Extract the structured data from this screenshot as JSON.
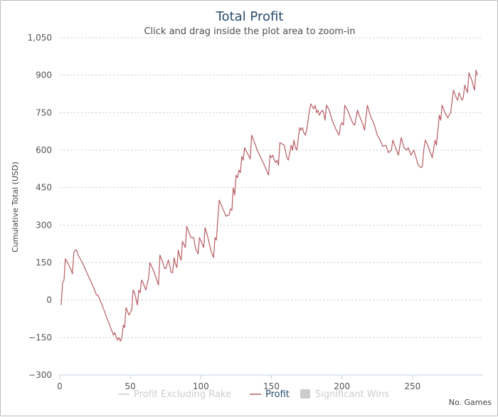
{
  "chart_data": {
    "type": "line",
    "title": "Total Profit",
    "subtitle": "Click and drag inside the plot area to zoom-in",
    "xlabel": "No. Games",
    "ylabel": "Cumulative Total (USD)",
    "xlim": [
      0,
      300
    ],
    "ylim": [
      -300,
      1050
    ],
    "xticks": [
      0,
      50,
      100,
      150,
      200,
      250
    ],
    "yticks": [
      -300,
      -150,
      0,
      150,
      300,
      450,
      600,
      750,
      900,
      1050
    ],
    "ytick_labels": [
      "−300",
      "−150",
      "0",
      "150",
      "300",
      "450",
      "600",
      "750",
      "900",
      "1,050"
    ],
    "grid": "horizontal dotted",
    "legend": {
      "placement": "bottom",
      "items": [
        {
          "label": "Profit Excluding Rake",
          "color": "#cccccc",
          "symbol": "line",
          "hidden": true
        },
        {
          "label": "Profit",
          "color": "#b85c63",
          "symbol": "line",
          "hidden": false
        },
        {
          "label": "Significant Wins",
          "color": "#cccccc",
          "symbol": "box",
          "hidden": true
        }
      ]
    },
    "series": [
      {
        "name": "Profit",
        "color": "#b85c63",
        "points": [
          [
            1,
            -20
          ],
          [
            2,
            70
          ],
          [
            3,
            80
          ],
          [
            4,
            165
          ],
          [
            6,
            145
          ],
          [
            8,
            120
          ],
          [
            9,
            105
          ],
          [
            10,
            190
          ],
          [
            11,
            200
          ],
          [
            12,
            200
          ],
          [
            13,
            180
          ],
          [
            16,
            150
          ],
          [
            20,
            100
          ],
          [
            24,
            50
          ],
          [
            26,
            20
          ],
          [
            27,
            20
          ],
          [
            30,
            -20
          ],
          [
            34,
            -80
          ],
          [
            36,
            -110
          ],
          [
            38,
            -140
          ],
          [
            39,
            -130
          ],
          [
            40,
            -150
          ],
          [
            41,
            -160
          ],
          [
            42,
            -150
          ],
          [
            43,
            -165
          ],
          [
            44,
            -150
          ],
          [
            45,
            -100
          ],
          [
            46,
            -110
          ],
          [
            47,
            -30
          ],
          [
            49,
            -60
          ],
          [
            51,
            -40
          ],
          [
            52,
            40
          ],
          [
            53,
            30
          ],
          [
            55,
            -20
          ],
          [
            56,
            40
          ],
          [
            57,
            30
          ],
          [
            58,
            80
          ],
          [
            59,
            70
          ],
          [
            61,
            40
          ],
          [
            63,
            90
          ],
          [
            64,
            150
          ],
          [
            67,
            110
          ],
          [
            70,
            60
          ],
          [
            71,
            180
          ],
          [
            73,
            150
          ],
          [
            74,
            130
          ],
          [
            75,
            125
          ],
          [
            77,
            160
          ],
          [
            79,
            110
          ],
          [
            80,
            110
          ],
          [
            81,
            170
          ],
          [
            82,
            145
          ],
          [
            83,
            130
          ],
          [
            84,
            200
          ],
          [
            85,
            175
          ],
          [
            86,
            160
          ],
          [
            87,
            235
          ],
          [
            89,
            210
          ],
          [
            90,
            295
          ],
          [
            91,
            280
          ],
          [
            93,
            250
          ],
          [
            95,
            250
          ],
          [
            96,
            210
          ],
          [
            98,
            185
          ],
          [
            99,
            250
          ],
          [
            102,
            210
          ],
          [
            103,
            290
          ],
          [
            105,
            250
          ],
          [
            107,
            200
          ],
          [
            109,
            170
          ],
          [
            110,
            250
          ],
          [
            111,
            240
          ],
          [
            113,
            400
          ],
          [
            116,
            360
          ],
          [
            118,
            335
          ],
          [
            119,
            340
          ],
          [
            120,
            340
          ],
          [
            121,
            365
          ],
          [
            122,
            360
          ],
          [
            123,
            450
          ],
          [
            124,
            420
          ],
          [
            125,
            500
          ],
          [
            126,
            490
          ],
          [
            127,
            520
          ],
          [
            128,
            510
          ],
          [
            129,
            575
          ],
          [
            130,
            560
          ],
          [
            131,
            610
          ],
          [
            135,
            565
          ],
          [
            136,
            660
          ],
          [
            140,
            600
          ],
          [
            145,
            540
          ],
          [
            148,
            500
          ],
          [
            149,
            580
          ],
          [
            150,
            570
          ],
          [
            151,
            580
          ],
          [
            152,
            560
          ],
          [
            153,
            550
          ],
          [
            154,
            560
          ],
          [
            155,
            540
          ],
          [
            156,
            630
          ],
          [
            159,
            620
          ],
          [
            161,
            570
          ],
          [
            162,
            560
          ],
          [
            164,
            620
          ],
          [
            165,
            600
          ],
          [
            166,
            640
          ],
          [
            167,
            610
          ],
          [
            168,
            600
          ],
          [
            170,
            690
          ],
          [
            171,
            680
          ],
          [
            172,
            690
          ],
          [
            173,
            670
          ],
          [
            174,
            660
          ],
          [
            175,
            680
          ],
          [
            177,
            760
          ],
          [
            178,
            785
          ],
          [
            180,
            765
          ],
          [
            181,
            780
          ],
          [
            182,
            750
          ],
          [
            183,
            760
          ],
          [
            184,
            740
          ],
          [
            186,
            760
          ],
          [
            187,
            750
          ],
          [
            188,
            720
          ],
          [
            189,
            780
          ],
          [
            191,
            760
          ],
          [
            193,
            720
          ],
          [
            196,
            680
          ],
          [
            198,
            660
          ],
          [
            199,
            700
          ],
          [
            200,
            710
          ],
          [
            201,
            700
          ],
          [
            202,
            780
          ],
          [
            204,
            760
          ],
          [
            206,
            730
          ],
          [
            208,
            705
          ],
          [
            209,
            700
          ],
          [
            211,
            760
          ],
          [
            212,
            740
          ],
          [
            213,
            730
          ],
          [
            215,
            700
          ],
          [
            216,
            680
          ],
          [
            218,
            780
          ],
          [
            220,
            740
          ],
          [
            223,
            700
          ],
          [
            225,
            660
          ],
          [
            227,
            640
          ],
          [
            229,
            615
          ],
          [
            231,
            620
          ],
          [
            233,
            590
          ],
          [
            235,
            600
          ],
          [
            236,
            640
          ],
          [
            238,
            610
          ],
          [
            240,
            580
          ],
          [
            242,
            650
          ],
          [
            244,
            610
          ],
          [
            246,
            600
          ],
          [
            247,
            610
          ],
          [
            249,
            580
          ],
          [
            251,
            600
          ],
          [
            253,
            560
          ],
          [
            254,
            540
          ],
          [
            256,
            530
          ],
          [
            257,
            535
          ],
          [
            258,
            600
          ],
          [
            259,
            640
          ],
          [
            260,
            630
          ],
          [
            262,
            600
          ],
          [
            264,
            570
          ],
          [
            266,
            640
          ],
          [
            267,
            620
          ],
          [
            268,
            680
          ],
          [
            269,
            740
          ],
          [
            270,
            720
          ],
          [
            271,
            780
          ],
          [
            273,
            750
          ],
          [
            275,
            730
          ],
          [
            276,
            740
          ],
          [
            277,
            750
          ],
          [
            279,
            840
          ],
          [
            281,
            810
          ],
          [
            282,
            800
          ],
          [
            283,
            830
          ],
          [
            285,
            800
          ],
          [
            286,
            810
          ],
          [
            287,
            860
          ],
          [
            289,
            830
          ],
          [
            290,
            910
          ],
          [
            292,
            880
          ],
          [
            294,
            840
          ],
          [
            295,
            920
          ],
          [
            296,
            900
          ]
        ]
      }
    ]
  }
}
